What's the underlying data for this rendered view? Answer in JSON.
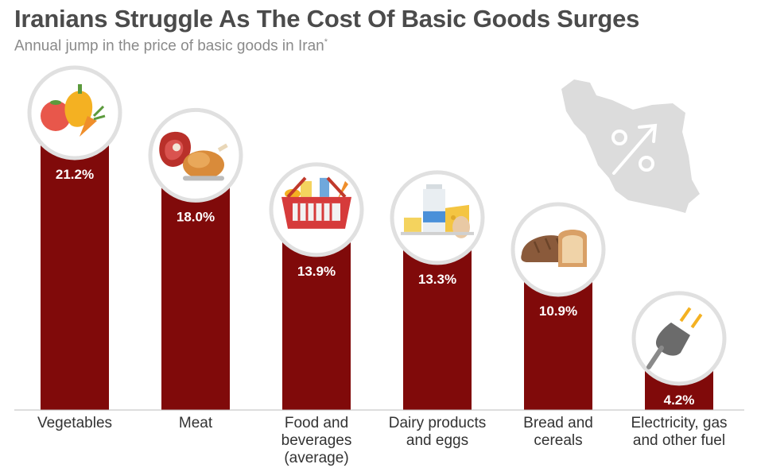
{
  "chart_data": {
    "type": "bar",
    "title": "Iranians Struggle As The Cost Of Basic Goods Surges",
    "subtitle": "Annual jump in the price of basic goods in Iran",
    "subtitle_mark": "*",
    "categories": [
      [
        "Vegetables"
      ],
      [
        "Meat"
      ],
      [
        "Food and",
        "beverages",
        "(average)"
      ],
      [
        "Dairy products",
        "and eggs"
      ],
      [
        "Bread and",
        "cereals"
      ],
      [
        "Electricity, gas",
        "and other fuel"
      ]
    ],
    "values": [
      21.2,
      18.0,
      13.9,
      13.3,
      10.9,
      4.2
    ],
    "value_labels": [
      "21.2%",
      "18.0%",
      "13.9%",
      "13.3%",
      "10.9%",
      "4.2%"
    ],
    "icons": [
      "vegetables-icon",
      "meat-icon",
      "grocery-basket-icon",
      "dairy-icon",
      "bread-icon",
      "electric-plug-icon"
    ],
    "unit": "%",
    "ylim": [
      0,
      25
    ],
    "xlabel": "",
    "ylabel": "",
    "grid": false,
    "bar_color": "#800a0a"
  },
  "decoration": {
    "map_icon": "iran-map-percent-icon",
    "map_color": "#dcdcdc"
  }
}
